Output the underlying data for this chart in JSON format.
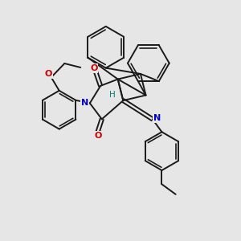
{
  "background_color": "#e6e6e6",
  "bond_color": "#1a1a1a",
  "N_color": "#0000cc",
  "O_color": "#cc0000",
  "H_color": "#008080",
  "line_width": 1.4,
  "dpi": 100,
  "figsize": [
    3.0,
    3.0
  ],
  "xlim": [
    -4.5,
    4.5
  ],
  "ylim": [
    -4.5,
    4.5
  ]
}
